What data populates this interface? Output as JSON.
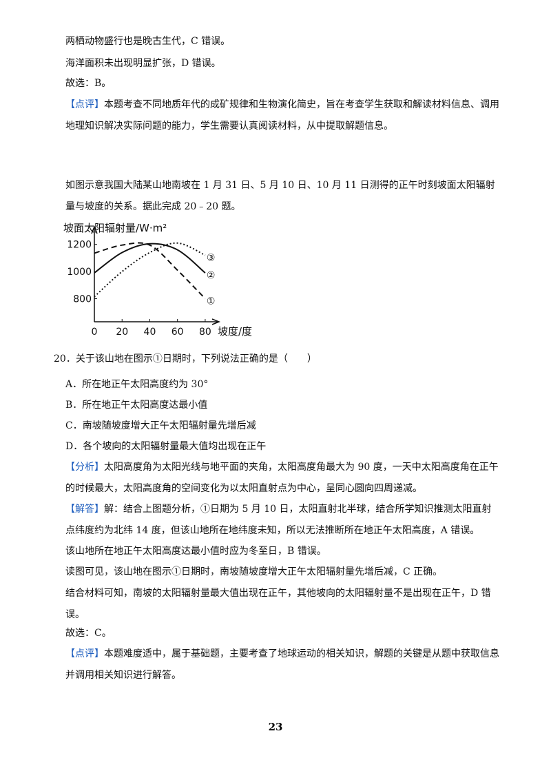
{
  "before": [
    {
      "text": "两栖动物盛行也是晚古生代，C 错误。"
    },
    {
      "text": "海洋面积未出现明显扩张，D 错误。"
    },
    {
      "text": "故选：B。"
    },
    {
      "tag": "【点评】",
      "text": "本题考查不同地质年代的成矿规律和生物演化简史，旨在考查学生获取和解读材料信息、调用地理知识解决实际问题的能力，学生需要认真阅读材料，从中提取解题信息。"
    },
    {
      "text": "如图示意我国大陆某山地南坡在 1 月 31 日、5 月 10 日、10 月 11 日测得的正午时刻坡面太阳辐射量与坡度的关系。据此完成 20﹣20 题。"
    }
  ],
  "chart_data": {
    "type": "line",
    "y_label": "坡面太阳辐射量/W·m²",
    "x_label": "坡度/度",
    "x": [
      0,
      20,
      40,
      60,
      80
    ],
    "xlim": [
      0,
      87
    ],
    "xticks": [
      0,
      20,
      40,
      60,
      80
    ],
    "ylim": [
      630,
      1300
    ],
    "yticks": [
      800,
      1000,
      1200
    ],
    "series": [
      {
        "name": "①",
        "color": "#111111",
        "line_style": "dashed",
        "values": [
          1135,
          1195,
          1195,
          1010,
          800
        ]
      },
      {
        "name": "②",
        "color": "#111111",
        "line_style": "solid",
        "values": [
          990,
          1140,
          1205,
          1160,
          990
        ]
      },
      {
        "name": "③",
        "color": "#111111",
        "line_style": "dotted",
        "values": [
          815,
          1000,
          1140,
          1210,
          1120
        ]
      }
    ]
  },
  "after": [
    {
      "text": "20．关于该山地在图示①日期时，下列说法正确的是（　　）"
    },
    {
      "text": "A．所在地正午太阳高度约为 30°"
    },
    {
      "text": "B．所在地正午太阳高度达最小值"
    },
    {
      "text": "C．南坡随坡度增大正午太阳辐射量先增后减"
    },
    {
      "text": "D．各个坡向的太阳辐射量最大值均出现在正午"
    },
    {
      "tag": "【分析】",
      "text": "太阳高度角为太阳光线与地平面的夹角，太阳高度角最大为 90 度，一天中太阳高度角在正午的时候最大，太阳高度角的空间变化为以太阳直射点为中心，呈同心圆向四周递减。"
    },
    {
      "tag": "【解答】",
      "text": "解：结合上图题分析，①日期为 5 月 10 日，太阳直射北半球，结合所学知识推测太阳直射点纬度约为北纬 14 度，但该山地所在地纬度未知，所以无法推断所在地正午太阳高度，A 错误。"
    },
    {
      "text": "该山地所在地正午太阳高度达最小值时应为冬至日，B 错误。"
    },
    {
      "text": "读图可见，该山地在图示①日期时，南坡随坡度增大正午太阳辐射量先增后减，C 正确。"
    },
    {
      "text": "结合材料可知，南坡的太阳辐射量最大值出现在正午，其他坡向的太阳辐射量不是出现在正午，D 错误。"
    },
    {
      "text": "故选：C。"
    },
    {
      "tag": "【点评】",
      "text": "本题难度适中，属于基础题，主要考查了地球运动的相关知识，解题的关键是从题中获取信息并调用相关知识进行解答。"
    }
  ],
  "page_number": "23"
}
